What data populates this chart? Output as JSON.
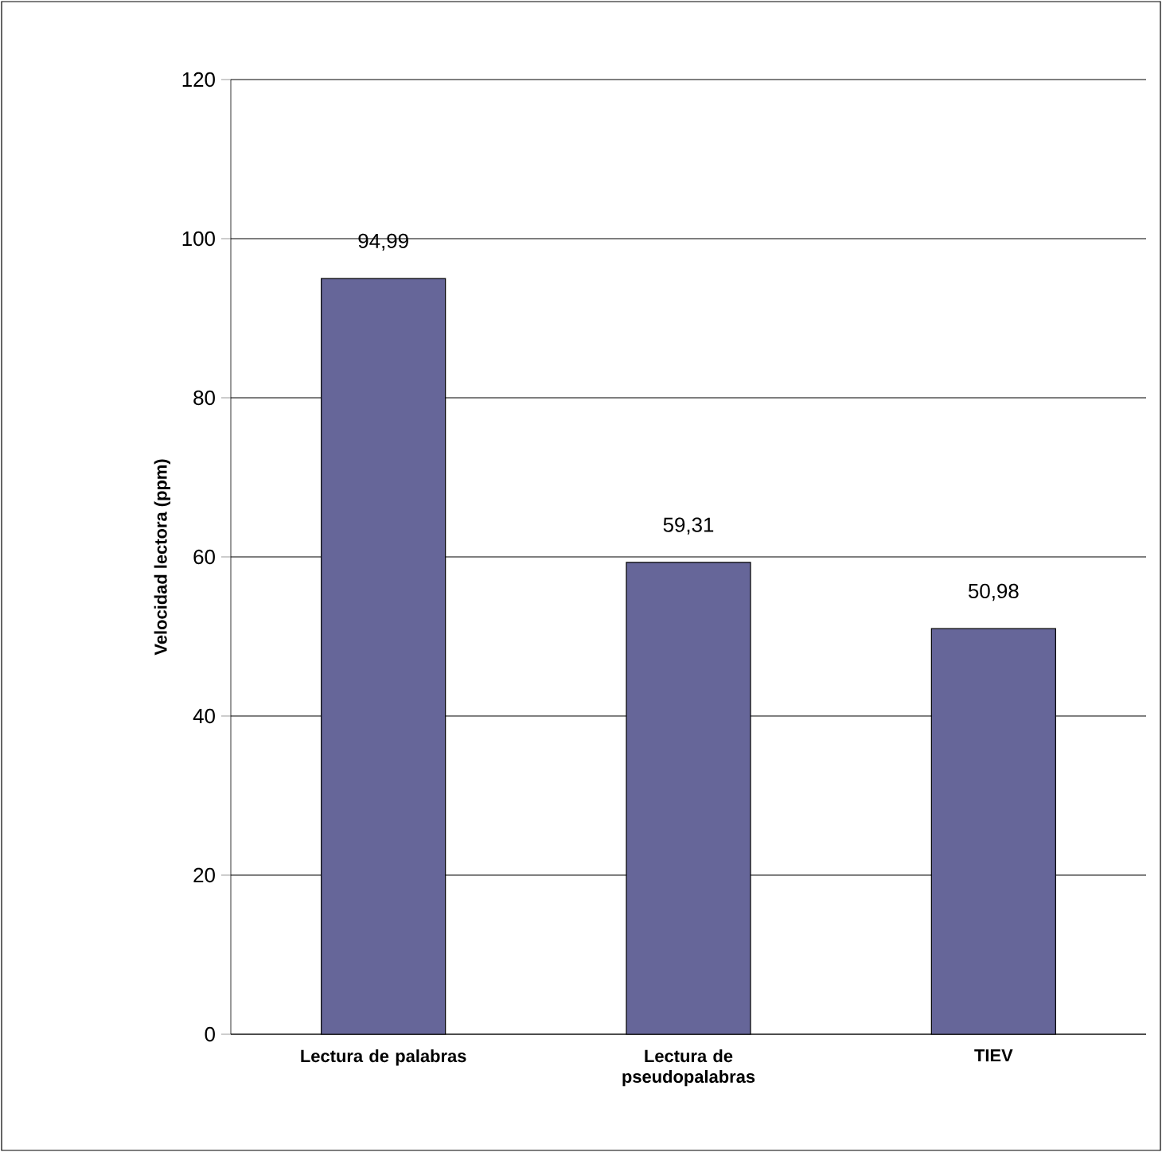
{
  "chart_data": {
    "type": "bar",
    "ylabel": "Velocidad lectora (ppm)",
    "categories": [
      "Lectura de palabras",
      "Lectura de pseudopalabras",
      "TIEV"
    ],
    "values": [
      94.99,
      59.31,
      50.98
    ],
    "value_labels": [
      "94,99",
      "59,31",
      "50,98"
    ],
    "color": "#666699",
    "ylim": [
      0,
      120
    ],
    "yticks": [
      0,
      20,
      40,
      60,
      80,
      100,
      120
    ],
    "grid": "y"
  }
}
